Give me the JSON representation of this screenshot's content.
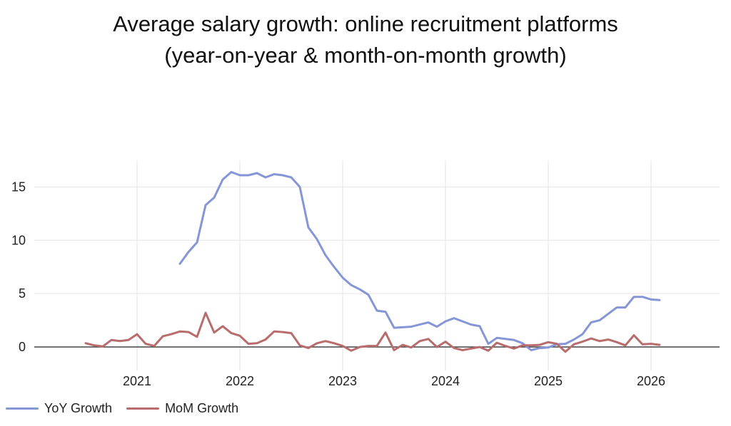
{
  "chart_data": {
    "type": "line",
    "title": "Average salary growth: online recruitment platforms",
    "subtitle": "(year-on-year & month-on-month growth)",
    "xlabel": "",
    "ylabel": "",
    "x_ticks": [
      "2021",
      "2022",
      "2023",
      "2024",
      "2025",
      "2026"
    ],
    "y_ticks": [
      "0",
      "5",
      "10",
      "15"
    ],
    "xlim": [
      "2020-01",
      "2026-09"
    ],
    "ylim": [
      -2.2,
      17.5
    ],
    "grid": true,
    "legend": "bottom-left",
    "series": [
      {
        "name": "YoY Growth",
        "color": "#8596d7",
        "x": [
          "2021-06",
          "2021-07",
          "2021-08",
          "2021-09",
          "2021-10",
          "2021-11",
          "2021-12",
          "2022-01",
          "2022-02",
          "2022-03",
          "2022-04",
          "2022-05",
          "2022-06",
          "2022-07",
          "2022-08",
          "2022-09",
          "2022-10",
          "2022-11",
          "2022-12",
          "2023-01",
          "2023-02",
          "2023-03",
          "2023-04",
          "2023-05",
          "2023-06",
          "2023-07",
          "2023-08",
          "2023-09",
          "2023-10",
          "2023-11",
          "2023-12",
          "2024-01",
          "2024-02",
          "2024-03",
          "2024-04",
          "2024-05",
          "2024-06",
          "2024-07",
          "2024-08",
          "2024-09",
          "2024-10",
          "2024-11",
          "2024-12",
          "2025-01",
          "2025-02",
          "2025-03",
          "2025-04",
          "2025-05",
          "2025-06",
          "2025-07",
          "2025-08",
          "2025-09",
          "2025-10",
          "2025-11",
          "2025-12",
          "2026-01",
          "2026-02"
        ],
        "values": [
          7.8,
          8.9,
          9.8,
          13.3,
          14.0,
          15.7,
          16.4,
          16.1,
          16.1,
          16.3,
          15.9,
          16.2,
          16.1,
          15.9,
          15.0,
          11.2,
          10.1,
          8.6,
          7.5,
          6.5,
          5.8,
          5.4,
          4.9,
          3.4,
          3.3,
          1.8,
          1.85,
          1.9,
          2.1,
          2.3,
          1.9,
          2.4,
          2.7,
          2.4,
          2.1,
          1.95,
          0.3,
          0.85,
          0.75,
          0.65,
          0.35,
          -0.3,
          -0.1,
          -0.05,
          0.25,
          0.3,
          0.7,
          1.2,
          2.3,
          2.5,
          3.1,
          3.7,
          3.7,
          4.7,
          4.7,
          4.45,
          4.4
        ]
      },
      {
        "name": "MoM Growth",
        "color": "#b86c6c",
        "x": [
          "2020-07",
          "2020-08",
          "2020-09",
          "2020-10",
          "2020-11",
          "2020-12",
          "2021-01",
          "2021-02",
          "2021-03",
          "2021-04",
          "2021-05",
          "2021-06",
          "2021-07",
          "2021-08",
          "2021-09",
          "2021-10",
          "2021-11",
          "2021-12",
          "2022-01",
          "2022-02",
          "2022-03",
          "2022-04",
          "2022-05",
          "2022-06",
          "2022-07",
          "2022-08",
          "2022-09",
          "2022-10",
          "2022-11",
          "2022-12",
          "2023-01",
          "2023-02",
          "2023-03",
          "2023-04",
          "2023-05",
          "2023-06",
          "2023-07",
          "2023-08",
          "2023-09",
          "2023-10",
          "2023-11",
          "2023-12",
          "2024-01",
          "2024-02",
          "2024-03",
          "2024-04",
          "2024-05",
          "2024-06",
          "2024-07",
          "2024-08",
          "2024-09",
          "2024-10",
          "2024-11",
          "2024-12",
          "2025-01",
          "2025-02",
          "2025-03",
          "2025-04",
          "2025-05",
          "2025-06",
          "2025-07",
          "2025-08",
          "2025-09",
          "2025-10",
          "2025-11",
          "2025-12",
          "2026-01",
          "2026-02"
        ],
        "values": [
          0.35,
          0.15,
          0.05,
          0.65,
          0.55,
          0.65,
          1.2,
          0.3,
          0.1,
          1.0,
          1.2,
          1.45,
          1.4,
          0.95,
          3.2,
          1.35,
          1.95,
          1.3,
          1.05,
          0.3,
          0.35,
          0.7,
          1.45,
          1.4,
          1.3,
          0.15,
          -0.1,
          0.35,
          0.55,
          0.35,
          0.1,
          -0.35,
          0.0,
          0.1,
          0.1,
          1.35,
          -0.3,
          0.2,
          -0.05,
          0.55,
          0.75,
          0.0,
          0.5,
          -0.1,
          -0.3,
          -0.15,
          0.0,
          -0.35,
          0.4,
          0.1,
          -0.15,
          0.15,
          0.15,
          0.2,
          0.45,
          0.3,
          -0.45,
          0.25,
          0.5,
          0.8,
          0.55,
          0.7,
          0.45,
          0.15,
          1.1,
          0.25,
          0.3,
          0.2
        ]
      }
    ]
  }
}
